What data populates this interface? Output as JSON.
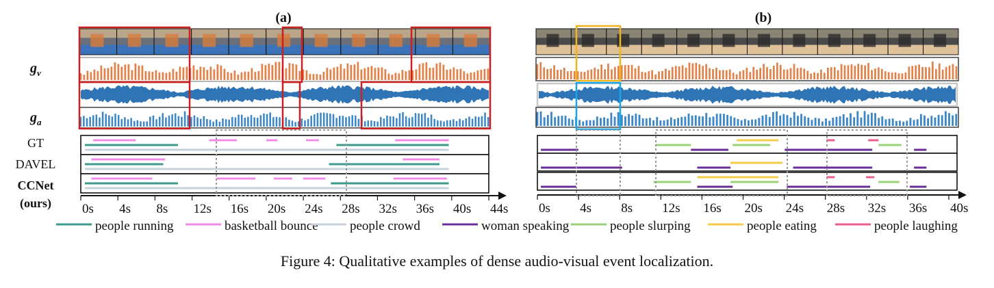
{
  "panels": [
    {
      "label": "(a)",
      "rows": [
        "GT",
        "DAVEL",
        "CCNet",
        "(ours)"
      ],
      "ticks": [
        "0s",
        "4s",
        "8s",
        "12s",
        "16s",
        "20s",
        "24s",
        "28s",
        "32s",
        "36s",
        "40s",
        "44s"
      ],
      "duration": 44,
      "vis_pattern": "bars",
      "aud_pattern": "bars",
      "legend": [
        {
          "label": "people running",
          "color": "#3e9a8a"
        },
        {
          "label": "basketball bounce",
          "color": "#f08ae6"
        },
        {
          "label": "people crowd",
          "color": "#c6d2dc"
        }
      ]
    },
    {
      "label": "(b)",
      "ticks": [
        "0s",
        "4s",
        "8s",
        "12s",
        "16s",
        "20s",
        "24s",
        "28s",
        "32s",
        "36s",
        "40s"
      ],
      "duration": 40,
      "legend": [
        {
          "label": "woman speaking",
          "color": "#6a2f96"
        },
        {
          "label": "people slurping",
          "color": "#9ad27a"
        },
        {
          "label": "people eating",
          "color": "#f5cc4a"
        },
        {
          "label": "people laughing",
          "color": "#ea5f92"
        }
      ]
    }
  ],
  "side_labels": {
    "gv": "g",
    "gv_sub": "v",
    "ga": "g",
    "ga_sub": "a"
  },
  "events": {
    "a": {
      "gt": [
        {
          "s": 1.2,
          "e": 5.8,
          "c": "#f08ae6",
          "l": 0
        },
        {
          "s": 0.3,
          "e": 10.4,
          "c": "#3e9a8a",
          "l": 1
        },
        {
          "s": 0.3,
          "e": 39.8,
          "c": "#c6d2dc",
          "l": 2
        },
        {
          "s": 13.8,
          "e": 16.8,
          "c": "#f08ae6",
          "l": 0
        },
        {
          "s": 20.0,
          "e": 21.2,
          "c": "#f08ae6",
          "l": 0
        },
        {
          "s": 24.3,
          "e": 25.7,
          "c": "#f08ae6",
          "l": 0
        },
        {
          "s": 34.0,
          "e": 39.8,
          "c": "#f08ae6",
          "l": 0
        },
        {
          "s": 27.6,
          "e": 39.8,
          "c": "#3e9a8a",
          "l": 1
        }
      ],
      "davel": [
        {
          "s": 1.0,
          "e": 9.0,
          "c": "#f08ae6",
          "l": 0
        },
        {
          "s": 0.3,
          "e": 8.8,
          "c": "#3e9a8a",
          "l": 1
        },
        {
          "s": 0.3,
          "e": 39.8,
          "c": "#c6d2dc",
          "l": 2
        },
        {
          "s": 34.8,
          "e": 38.8,
          "c": "#f08ae6",
          "l": 0
        },
        {
          "s": 26.8,
          "e": 38.8,
          "c": "#3e9a8a",
          "l": 1
        }
      ],
      "ccnet": [
        {
          "s": 1.0,
          "e": 7.6,
          "c": "#f08ae6",
          "l": 0
        },
        {
          "s": 0.3,
          "e": 10.4,
          "c": "#3e9a8a",
          "l": 1
        },
        {
          "s": 0.3,
          "e": 39.8,
          "c": "#c6d2dc",
          "l": 2
        },
        {
          "s": 14.6,
          "e": 18.8,
          "c": "#f08ae6",
          "l": 0
        },
        {
          "s": 20.8,
          "e": 22.8,
          "c": "#f08ae6",
          "l": 0
        },
        {
          "s": 24.0,
          "e": 26.4,
          "c": "#f08ae6",
          "l": 0
        },
        {
          "s": 33.8,
          "e": 39.6,
          "c": "#f08ae6",
          "l": 0
        },
        {
          "s": 27.0,
          "e": 39.8,
          "c": "#3e9a8a",
          "l": 1
        }
      ]
    },
    "b": {
      "gt": [
        {
          "s": 0.2,
          "e": 3.8,
          "c": "#6a2f96",
          "l": 2
        },
        {
          "s": 11.2,
          "e": 14.6,
          "c": "#9ad27a",
          "l": 1
        },
        {
          "s": 14.6,
          "e": 18.2,
          "c": "#6a2f96",
          "l": 2
        },
        {
          "s": 19.0,
          "e": 23.0,
          "c": "#f5cc4a",
          "l": 0
        },
        {
          "s": 18.6,
          "e": 22.2,
          "c": "#9ad27a",
          "l": 1
        },
        {
          "s": 23.6,
          "e": 32.0,
          "c": "#6a2f96",
          "l": 2
        },
        {
          "s": 27.6,
          "e": 28.4,
          "c": "#ea5f92",
          "l": 0
        },
        {
          "s": 31.6,
          "e": 32.6,
          "c": "#ea5f92",
          "l": 0
        },
        {
          "s": 32.6,
          "e": 34.8,
          "c": "#9ad27a",
          "l": 1
        },
        {
          "s": 36.0,
          "e": 37.2,
          "c": "#6a2f96",
          "l": 2
        }
      ],
      "davel": [
        {
          "s": 0.2,
          "e": 8.0,
          "c": "#6a2f96",
          "l": 2
        },
        {
          "s": 18.4,
          "e": 23.4,
          "c": "#f5cc4a",
          "l": 1
        },
        {
          "s": 15.2,
          "e": 18.4,
          "c": "#6a2f96",
          "l": 2
        },
        {
          "s": 24.4,
          "e": 32.0,
          "c": "#6a2f96",
          "l": 2
        },
        {
          "s": 36.0,
          "e": 37.2,
          "c": "#6a2f96",
          "l": 2
        }
      ],
      "ccnet": [
        {
          "s": 0.2,
          "e": 3.6,
          "c": "#6a2f96",
          "l": 2
        },
        {
          "s": 11.0,
          "e": 14.6,
          "c": "#9ad27a",
          "l": 1
        },
        {
          "s": 15.2,
          "e": 18.6,
          "c": "#6a2f96",
          "l": 2
        },
        {
          "s": 15.2,
          "e": 23.0,
          "c": "#f5cc4a",
          "l": 0
        },
        {
          "s": 18.4,
          "e": 23.0,
          "c": "#9ad27a",
          "l": 1
        },
        {
          "s": 23.8,
          "e": 31.8,
          "c": "#6a2f96",
          "l": 2
        },
        {
          "s": 27.6,
          "e": 28.4,
          "c": "#ea5f92",
          "l": 0
        },
        {
          "s": 31.4,
          "e": 32.2,
          "c": "#ea5f92",
          "l": 0
        },
        {
          "s": 32.6,
          "e": 34.6,
          "c": "#9ad27a",
          "l": 1
        },
        {
          "s": 35.6,
          "e": 37.2,
          "c": "#6a2f96",
          "l": 2
        }
      ]
    }
  },
  "caption": "Figure 4: Qualitative examples of dense audio-visual event localization."
}
